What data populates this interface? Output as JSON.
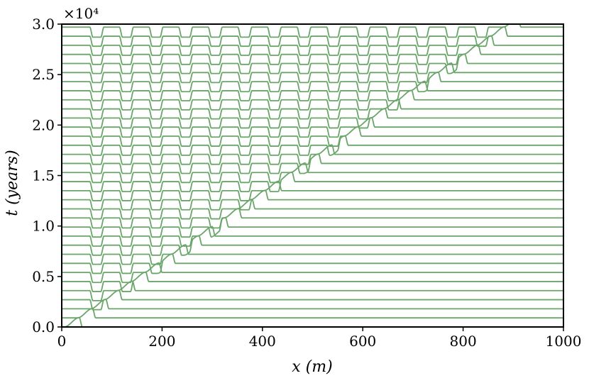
{
  "chart_data": {
    "type": "line",
    "title": "",
    "xlabel": "x (m)",
    "ylabel": "t (years)",
    "y_multiplier": "×10⁴",
    "xlim": [
      0,
      1000
    ],
    "ylim": [
      0,
      30000
    ],
    "xticks": [
      0,
      200,
      400,
      600,
      800,
      1000
    ],
    "yticks": [
      0,
      5000,
      10000,
      15000,
      20000,
      25000,
      30000
    ],
    "xtick_labels": [
      "0",
      "200",
      "400",
      "600",
      "800",
      "1000"
    ],
    "ytick_labels": [
      "0.0",
      "0.5",
      "1.0",
      "1.5",
      "2.0",
      "2.5",
      "3.0"
    ],
    "grid": false,
    "series_color": "#6aa56a",
    "profiles": {
      "count": 34,
      "t_start": 0,
      "t_step": 900,
      "profile_scale_years": 1100,
      "front_x_start": 35,
      "front_x_step": 26.5,
      "front_height": 0.85,
      "dip_depth": 0.9,
      "dip_spacing": 59,
      "dip_first_x": 70,
      "dip_half_width": 10
    }
  }
}
